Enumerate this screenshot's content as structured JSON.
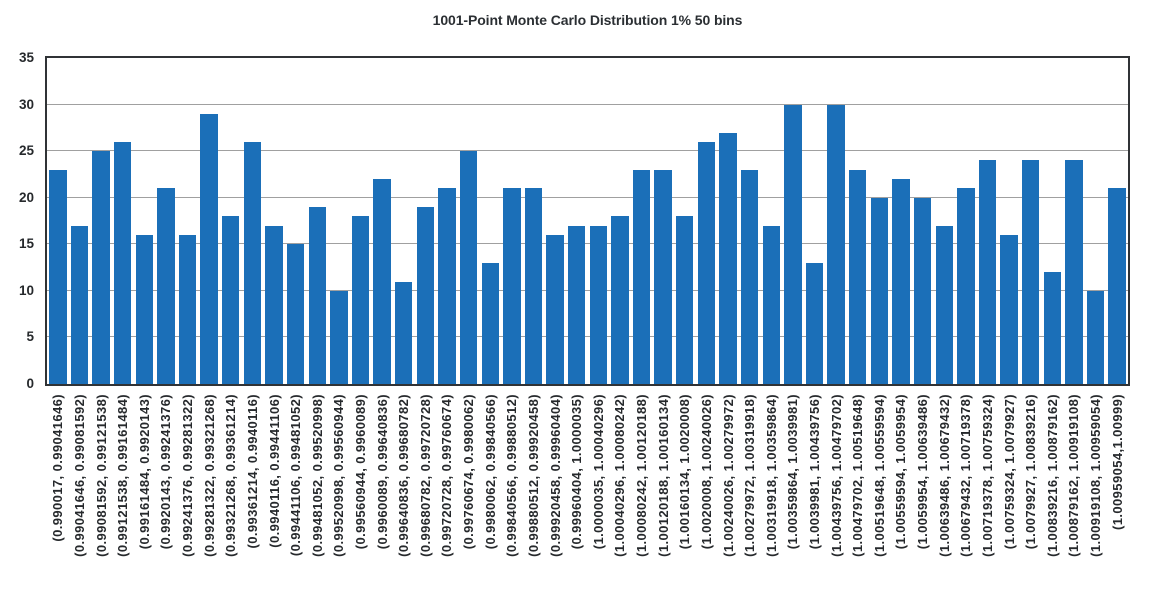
{
  "chart_data": {
    "type": "bar",
    "title": "1001-Point Monte Carlo Distribution 1% 50 bins",
    "xlabel": "",
    "ylabel": "",
    "ylim": [
      0,
      35
    ],
    "yticks": [
      0,
      5,
      10,
      15,
      20,
      25,
      30,
      35
    ],
    "grid": "horizontal",
    "legend": "none",
    "bar_color": "#1b6fb8",
    "gridline_color": "#a0a0a0",
    "axis_color": "#303336",
    "text_color": "#26292c",
    "title_color": "#2b2f33",
    "background": "#ffffff",
    "categories": [
      "(0.990017, 0.99041646)",
      "(0.99041646, 0.99081592)",
      "(0.99081592, 0.99121538)",
      "(0.99121538, 0.99161484)",
      "(0.99161484, 0.9920143)",
      "(0.9920143, 0.99241376)",
      "(0.99241376, 0.99281322)",
      "(0.99281322, 0.99321268)",
      "(0.99321268, 0.99361214)",
      "(0.99361214, 0.9940116)",
      "(0.9940116, 0.99441106)",
      "(0.99441106, 0.99481052)",
      "(0.99481052, 0.99520998)",
      "(0.99520998, 0.99560944)",
      "(0.99560944, 0.9960089)",
      "(0.9960089, 0.99640836)",
      "(0.99640836, 0.99680782)",
      "(0.99680782, 0.99720728)",
      "(0.99720728, 0.99760674)",
      "(0.99760674, 0.9980062)",
      "(0.9980062, 0.99840566)",
      "(0.99840566, 0.99880512)",
      "(0.99880512, 0.99920458)",
      "(0.99920458, 0.99960404)",
      "(0.99960404, 1.0000035)",
      "(1.0000035, 1.00040296)",
      "(1.00040296, 1.00080242)",
      "(1.00080242, 1.00120188)",
      "(1.00120188, 1.00160134)",
      "(1.00160134, 1.0020008)",
      "(1.0020008, 1.00240026)",
      "(1.00240026, 1.00279972)",
      "(1.00279972, 1.00319918)",
      "(1.00319918, 1.00359864)",
      "(1.00359864, 1.0039981)",
      "(1.0039981, 1.00439756)",
      "(1.00439756, 1.00479702)",
      "(1.00479702, 1.00519648)",
      "(1.00519648, 1.00559594)",
      "(1.00559594, 1.0059954)",
      "(1.0059954, 1.00639486)",
      "(1.00639486, 1.00679432)",
      "(1.00679432, 1.00719378)",
      "(1.00719378, 1.00759324)",
      "(1.00759324, 1.0079927)",
      "(1.0079927, 1.00839216)",
      "(1.00839216, 1.00879162)",
      "(1.00879162, 1.00919108)",
      "(1.00919108, 1.00959054)",
      "(1.00959054,1.00999)"
    ],
    "values": [
      23,
      17,
      25,
      26,
      16,
      21,
      16,
      29,
      18,
      26,
      17,
      15,
      19,
      10,
      18,
      22,
      11,
      19,
      21,
      25,
      13,
      21,
      21,
      16,
      17,
      17,
      18,
      23,
      23,
      18,
      26,
      27,
      23,
      17,
      30,
      13,
      30,
      23,
      20,
      22,
      20,
      17,
      21,
      24,
      16,
      24,
      12,
      24,
      10,
      21
    ],
    "total_points": 1001
  }
}
